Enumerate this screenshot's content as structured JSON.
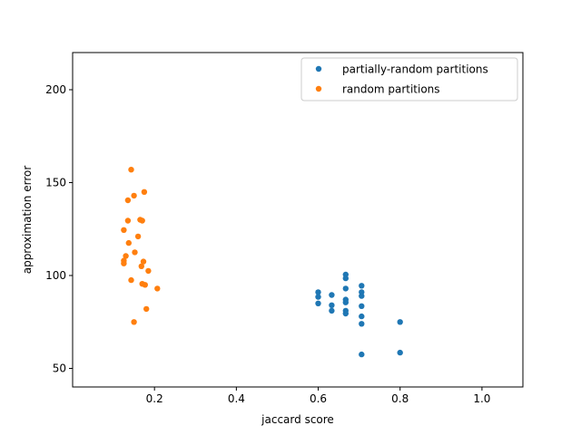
{
  "chart_data": {
    "type": "scatter",
    "xlabel": "jaccard score",
    "ylabel": "approximation error",
    "xlim": [
      0.0,
      1.1
    ],
    "ylim": [
      40,
      220
    ],
    "xticks": [
      0.2,
      0.4,
      0.6,
      0.8,
      1.0
    ],
    "xtick_labels": [
      "0.2",
      "0.4",
      "0.6",
      "0.8",
      "1.0"
    ],
    "yticks": [
      50,
      100,
      150,
      200
    ],
    "ytick_labels": [
      "50",
      "100",
      "150",
      "200"
    ],
    "grid": false,
    "legend_position": "top-right",
    "series": [
      {
        "name": "partially-random partitions",
        "color": "#1f77b4",
        "points": [
          [
            0.6,
            91
          ],
          [
            0.6,
            88.5
          ],
          [
            0.6,
            85
          ],
          [
            0.633,
            89.5
          ],
          [
            0.633,
            84
          ],
          [
            0.633,
            81
          ],
          [
            0.667,
            100.5
          ],
          [
            0.667,
            98.5
          ],
          [
            0.667,
            93
          ],
          [
            0.667,
            87
          ],
          [
            0.667,
            85.5
          ],
          [
            0.667,
            81
          ],
          [
            0.667,
            79.5
          ],
          [
            0.706,
            94.5
          ],
          [
            0.706,
            91
          ],
          [
            0.706,
            89
          ],
          [
            0.706,
            83.5
          ],
          [
            0.706,
            78
          ],
          [
            0.706,
            74
          ],
          [
            0.706,
            57.5
          ],
          [
            0.8,
            75
          ],
          [
            0.8,
            58.5
          ]
        ]
      },
      {
        "name": "random partitions",
        "color": "#ff7f0e",
        "points": [
          [
            0.143,
            157
          ],
          [
            0.175,
            145
          ],
          [
            0.15,
            143
          ],
          [
            0.135,
            140.5
          ],
          [
            0.165,
            130
          ],
          [
            0.17,
            129.5
          ],
          [
            0.135,
            129.5
          ],
          [
            0.125,
            124.5
          ],
          [
            0.16,
            121
          ],
          [
            0.137,
            117.5
          ],
          [
            0.152,
            112.5
          ],
          [
            0.13,
            110.5
          ],
          [
            0.125,
            108
          ],
          [
            0.125,
            106.5
          ],
          [
            0.173,
            107.5
          ],
          [
            0.168,
            105
          ],
          [
            0.185,
            102.5
          ],
          [
            0.143,
            97.5
          ],
          [
            0.17,
            95.5
          ],
          [
            0.177,
            95
          ],
          [
            0.207,
            93
          ],
          [
            0.18,
            82
          ],
          [
            0.15,
            75
          ]
        ]
      }
    ]
  }
}
